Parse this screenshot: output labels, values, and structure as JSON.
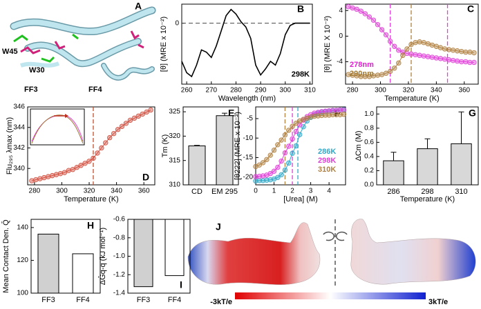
{
  "chart_data": [
    {
      "type": "line",
      "panel": "B",
      "x_label": "Wavelength (nm)",
      "y_label": "[θ] (MRE x 10⁻²)",
      "xlim": [
        258,
        311
      ],
      "xticks": [
        260,
        270,
        280,
        290,
        300,
        310
      ],
      "ylim": [
        -8,
        2.5
      ],
      "yticks": [
        0
      ],
      "hline": 0,
      "markers": false,
      "x": [
        258,
        260,
        262,
        264,
        266,
        268,
        270,
        272,
        274,
        276,
        278,
        280,
        282,
        284,
        286,
        288,
        290,
        292,
        294,
        296,
        298,
        300,
        302,
        304,
        306,
        308,
        310
      ],
      "series": [
        {
          "color": "#000000",
          "values": [
            -5,
            -6.5,
            -7,
            -5.5,
            -3.5,
            -3.8,
            -4.5,
            -3,
            -1,
            1,
            1.8,
            1.2,
            0.2,
            -0.5,
            -2,
            -5.5,
            -6.8,
            -6,
            -5,
            -5.5,
            -4,
            -1.5,
            -0.3,
            0,
            0,
            0,
            0
          ]
        }
      ],
      "annotations": [
        {
          "text": "298K",
          "color": "#000000"
        }
      ]
    },
    {
      "type": "line",
      "panel": "C",
      "x_label": "Temperature (K)",
      "y_label": "[θ] (MRE X 10⁻²)",
      "xlim": [
        275,
        370
      ],
      "xticks": [
        280,
        300,
        320,
        340,
        360
      ],
      "ylim": [
        -7.5,
        5
      ],
      "yticks": [
        -4,
        0,
        4
      ],
      "markers": true,
      "x": [
        277,
        280,
        283,
        286,
        289,
        292,
        295,
        298,
        301,
        304,
        307,
        310,
        313,
        316,
        319,
        322,
        325,
        328,
        331,
        334,
        337,
        340,
        343,
        346,
        349,
        352,
        355,
        358,
        361,
        364,
        367
      ],
      "series": [
        {
          "color": "#e040d8",
          "values": [
            4.6,
            4.4,
            4.2,
            3.9,
            3.5,
            3.0,
            2.5,
            1.8,
            1.0,
            0.2,
            -0.8,
            -1.6,
            -2.2,
            -2.5,
            -2.7,
            -2.8,
            -2.9,
            -3.0,
            -3.1,
            -3.2,
            -3.3,
            -3.4,
            -3.5,
            -3.6,
            -3.7,
            -3.8,
            -3.9,
            -4.0,
            -4.0,
            -4.1,
            -4.1
          ]
        },
        {
          "color": "#b08040",
          "values": [
            -6.0,
            -6.1,
            -6.2,
            -6.3,
            -6.3,
            -6.3,
            -6.2,
            -6.1,
            -6.0,
            -5.8,
            -5.5,
            -5.0,
            -4.2,
            -3.0,
            -2.0,
            -1.3,
            -1.0,
            -0.9,
            -1.0,
            -1.2,
            -1.4,
            -1.6,
            -1.8,
            -2.0,
            -2.1,
            -2.2,
            -2.3,
            -2.4,
            -2.5,
            -2.5,
            -2.6
          ]
        }
      ],
      "vlines": [
        {
          "x": 307,
          "color": "#e040d8"
        },
        {
          "x": 322,
          "color": "#b08040"
        },
        {
          "x": 348,
          "color": "#e040d8"
        }
      ],
      "annotations": [
        {
          "text": "278nm",
          "color": "#e020d0"
        },
        {
          "text": "290nm",
          "color": "#a07830"
        }
      ]
    },
    {
      "type": "line",
      "panel": "D",
      "x_label": "Temperature (K)",
      "y_label": "Flu₂₉₅ λmax (nm)",
      "xlim": [
        275,
        368
      ],
      "xticks": [
        280,
        300,
        320,
        340,
        360
      ],
      "ylim": [
        338.4,
        346
      ],
      "yticks": [
        340,
        342,
        344,
        346
      ],
      "markers": true,
      "x": [
        278,
        281,
        284,
        287,
        290,
        293,
        296,
        299,
        302,
        305,
        308,
        311,
        314,
        317,
        320,
        323,
        326,
        329,
        332,
        335,
        338,
        341,
        344,
        347,
        350,
        353,
        356,
        359,
        362,
        365
      ],
      "series": [
        {
          "color": "#d05040",
          "values": [
            338.8,
            338.9,
            339.0,
            339.1,
            339.2,
            339.3,
            339.4,
            339.5,
            339.6,
            339.8,
            339.9,
            340.1,
            340.3,
            340.5,
            340.7,
            341.0,
            341.5,
            342.0,
            342.5,
            343.0,
            343.4,
            343.8,
            344.1,
            344.4,
            344.7,
            344.9,
            345.1,
            345.3,
            345.5,
            345.7
          ]
        }
      ],
      "vlines": [
        {
          "x": 323,
          "color": "#c05030"
        }
      ]
    },
    {
      "type": "bar",
      "panel": "E",
      "y_label": "Tm (K)",
      "ylim": [
        310,
        326
      ],
      "yticks": [
        310,
        315,
        320,
        325
      ],
      "categories": [
        "CD",
        "EM 295"
      ],
      "values": [
        318,
        324.2
      ],
      "errors": [
        0.1,
        0.5
      ],
      "colors": [
        "#d8d8d8",
        "#d8d8d8"
      ]
    },
    {
      "type": "line",
      "panel": "F",
      "x_label": "[Urea] (M)",
      "y_label": "[θ222] (MRE x 10⁻³)",
      "xlim": [
        0,
        4.9
      ],
      "xticks": [
        0,
        1,
        2,
        3,
        4
      ],
      "ylim": [
        -22,
        -2
      ],
      "yticks": [
        -20,
        -15,
        -10,
        -5
      ],
      "markers": true,
      "x": [
        0,
        0.2,
        0.4,
        0.6,
        0.8,
        1.0,
        1.2,
        1.4,
        1.6,
        1.8,
        2.0,
        2.2,
        2.4,
        2.6,
        2.8,
        3.0,
        3.2,
        3.4,
        3.6,
        3.8,
        4.0,
        4.2,
        4.4,
        4.6,
        4.8
      ],
      "series": [
        {
          "name": "286K",
          "color": "#30a8c8",
          "values": [
            -21,
            -20.9,
            -20.9,
            -20.8,
            -20.7,
            -20.5,
            -20.1,
            -19.4,
            -18.2,
            -16.4,
            -13.9,
            -12,
            -9.1,
            -7.1,
            -5.6,
            -4.7,
            -4.0,
            -3.6,
            -3.4,
            -3.2,
            -3.1,
            -3.0,
            -2.9,
            -2.8,
            -2.7
          ]
        },
        {
          "name": "298K",
          "color": "#e040d8",
          "values": [
            -19.9,
            -19.8,
            -19.7,
            -19.5,
            -19.1,
            -18.5,
            -17.5,
            -15.9,
            -13.8,
            -12.1,
            -10.2,
            -8.3,
            -6.6,
            -5.4,
            -4.5,
            -4.0,
            -3.6,
            -3.4,
            -3.2,
            -3.1,
            -3.0,
            -2.9,
            -2.9,
            -2.8,
            -2.8
          ]
        },
        {
          "name": "310K",
          "color": "#b08040",
          "values": [
            -17.3,
            -16.9,
            -16.3,
            -15.5,
            -14.4,
            -13.1,
            -11.7,
            -10.5,
            -9.2,
            -8.0,
            -7.0,
            -6.2,
            -5.6,
            -5.2,
            -4.9,
            -4.6,
            -4.4,
            -4.3,
            -4.2,
            -4.1,
            -4.1,
            -4.0,
            -4.0,
            -4.0,
            -3.9
          ]
        }
      ],
      "vlines": [
        {
          "x": 1.6,
          "color": "#b08040"
        },
        {
          "x": 2.0,
          "color": "#e040d8"
        },
        {
          "x": 2.3,
          "color": "#30a8c8"
        }
      ]
    },
    {
      "type": "bar",
      "panel": "G",
      "x_label": "Temperature (K)",
      "y_label": "ΔCm (M)",
      "ylim": [
        0,
        1.1
      ],
      "yticks": [
        {
          "value": 0,
          "label": "0.0"
        },
        0.2,
        0.4,
        0.6,
        0.8,
        {
          "value": 1,
          "label": "1.0"
        }
      ],
      "categories": [
        "286",
        "298",
        "310"
      ],
      "values": [
        0.34,
        0.51,
        0.58
      ],
      "errors": [
        0.12,
        0.14,
        0.45
      ],
      "colors": [
        "#d8d8d8",
        "#d8d8d8",
        "#d8d8d8"
      ]
    },
    {
      "type": "bar",
      "panel": "H",
      "y_label": "Mean Contact Den. Q̄",
      "ylim": [
        100,
        145
      ],
      "yticks": [
        100,
        120,
        140
      ],
      "categories": [
        "FF3",
        "FF4"
      ],
      "values": [
        136,
        124
      ],
      "colors": [
        "#d0d0d0",
        "#ffffff"
      ]
    },
    {
      "type": "bar",
      "panel": "I",
      "y_label": "ΔḠq-q (kJ mol⁻¹)",
      "ylim": [
        -1.4,
        -0.6
      ],
      "yticks": [
        -0.6,
        -0.8,
        {
          "value": -1,
          "label": "-1.0"
        },
        -1.2,
        -1.4
      ],
      "categories": [
        "FF3",
        "FF4"
      ],
      "values": [
        -1.33,
        -1.21
      ],
      "colors": [
        "#d0d0d0",
        "#ffffff"
      ]
    }
  ],
  "structure_panel": {
    "panel": "A",
    "labels": [
      "W45",
      "W30",
      "FF3",
      "FF4"
    ]
  },
  "electrostatics_panel": {
    "panel": "J",
    "scale_min": "-3kT/e",
    "scale_max": "3kT/e"
  }
}
